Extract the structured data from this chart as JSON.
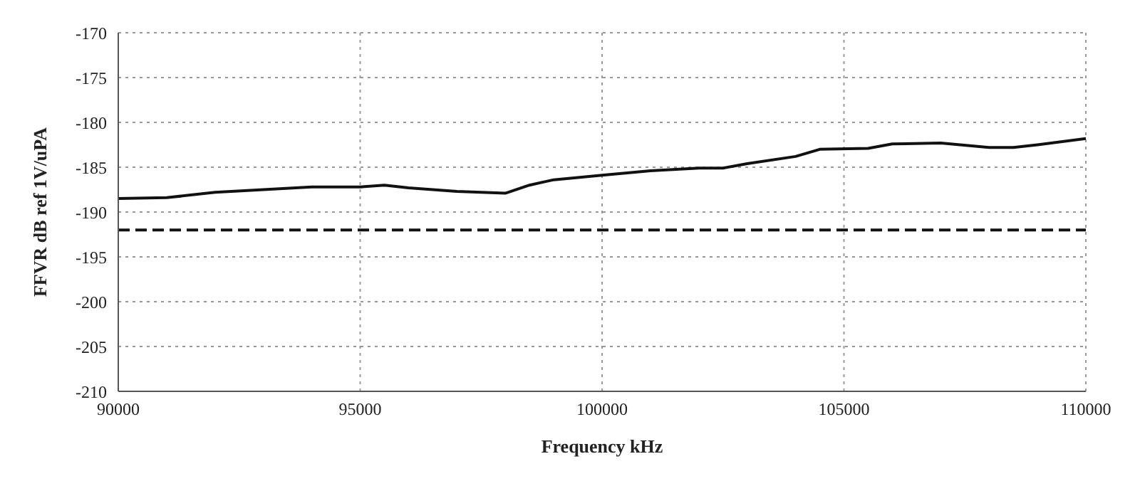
{
  "chart_data": {
    "type": "line",
    "xlabel": "Frequency kHz",
    "ylabel": "FFVR dB ref 1V/uPA",
    "x": [
      90000,
      91000,
      92000,
      93000,
      94000,
      95000,
      95500,
      96000,
      97000,
      98000,
      98500,
      99000,
      100000,
      101000,
      102000,
      102500,
      103000,
      104000,
      104500,
      105500,
      106000,
      107000,
      108000,
      108500,
      109000,
      110000
    ],
    "series": [
      {
        "color": "#111111",
        "values": [
          -188.5,
          -188.4,
          -187.8,
          -187.5,
          -187.2,
          -187.2,
          -187.0,
          -187.3,
          -187.7,
          -187.9,
          -187.0,
          -186.4,
          -185.9,
          -185.4,
          -185.1,
          -185.1,
          -184.6,
          -183.8,
          -183.0,
          -182.9,
          -182.4,
          -182.3,
          -182.8,
          -182.8,
          -182.5,
          -181.8
        ]
      }
    ],
    "xlim": [
      90000,
      110000
    ],
    "xticks": [
      90000,
      95000,
      100000,
      105000,
      110000
    ],
    "ylim": [
      -210,
      -170
    ],
    "yticks": [
      -210,
      -205,
      -200,
      -195,
      -190,
      -185,
      -180,
      -175,
      -170
    ],
    "ref_lines": [
      {
        "axis": "y",
        "value": -192,
        "color": "#111111",
        "line_style": "dashed"
      }
    ],
    "grid": true,
    "marker": "none",
    "line_style": "solid"
  }
}
